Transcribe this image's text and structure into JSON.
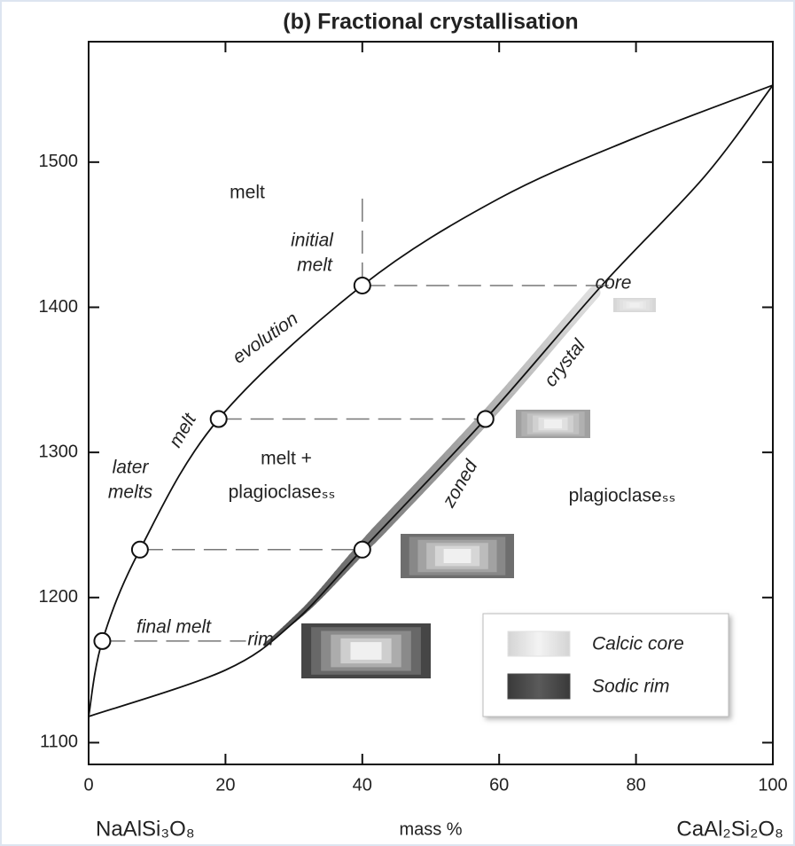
{
  "chart_data": {
    "type": "line",
    "title": "(b) Fractional crystallisation",
    "x_label": "mass %",
    "x_left_label": "NaAlSi₃O₈",
    "x_right_label": "CaAl₂Si₂O₈",
    "xlim": [
      0,
      100
    ],
    "ylim": [
      1085,
      1583
    ],
    "xticks": [
      0,
      20,
      40,
      60,
      80,
      100
    ],
    "yticks": [
      1100,
      1200,
      1300,
      1400,
      1500
    ],
    "series": [
      {
        "color": "#111111",
        "style": "solid",
        "x": [
          0,
          2,
          7.5,
          19,
          40,
          60,
          80,
          100
        ],
        "values": [
          1118,
          1170,
          1233,
          1323,
          1415,
          1475,
          1517,
          1553
        ]
      },
      {
        "color": "#111111",
        "style": "solid",
        "x": [
          0,
          20,
          30,
          40,
          58,
          75,
          90,
          100
        ],
        "values": [
          1118,
          1150,
          1183,
          1233,
          1323,
          1415,
          1490,
          1553
        ]
      },
      {
        "color": "#777777",
        "style": "dashed",
        "x": [
          40,
          76
        ],
        "values": [
          1415,
          1415
        ]
      },
      {
        "color": "#777777",
        "style": "dashed",
        "x": [
          40,
          40
        ],
        "values": [
          1415,
          1480
        ]
      },
      {
        "color": "#777777",
        "style": "dashed",
        "x": [
          19,
          58
        ],
        "values": [
          1323,
          1323
        ]
      },
      {
        "color": "#777777",
        "style": "dashed",
        "x": [
          7.5,
          40
        ],
        "values": [
          1233,
          1233
        ]
      },
      {
        "color": "#777777",
        "style": "dashed",
        "x": [
          2,
          23
        ],
        "values": [
          1170,
          1170
        ]
      },
      {
        "color": "#111111",
        "style": "markers",
        "x": [
          2,
          7.5,
          19,
          40,
          40,
          58
        ],
        "values": [
          1170,
          1233,
          1323,
          1415,
          1233,
          1323
        ]
      }
    ],
    "annotations": [
      "melt",
      "initial",
      "melt",
      "evolution",
      "melt",
      "later",
      "melts",
      "melt +",
      "plagioclaseₛₛ",
      "final melt",
      "rim",
      "core",
      "crystal",
      "zoned",
      "plagioclaseₛₛ"
    ],
    "legend": [
      {
        "name": "Calcic core",
        "color": "#e2e2e2"
      },
      {
        "name": "Sodic rim",
        "color": "#4a4a4a"
      }
    ]
  }
}
